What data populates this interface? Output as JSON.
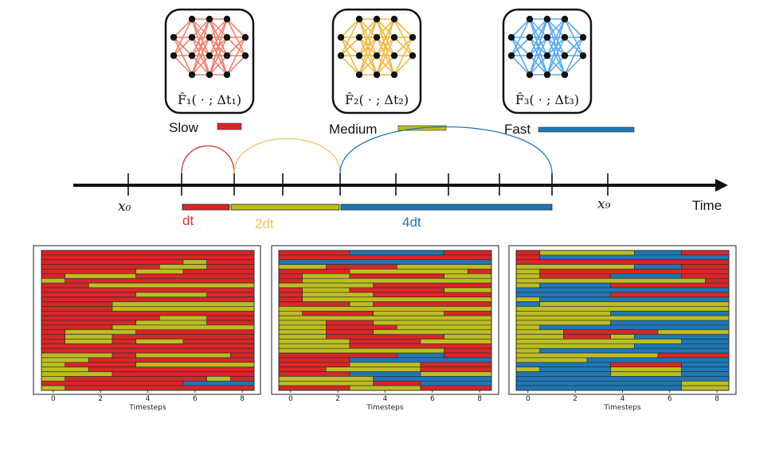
{
  "networks": [
    {
      "label": "F̂₁( · ; Δt₁)",
      "color": "#f08070"
    },
    {
      "label": "F̂₂( · ; Δt₂)",
      "color": "#f0b840"
    },
    {
      "label": "F̂₃( · ; Δt₃)",
      "color": "#58a8f0"
    }
  ],
  "legend": [
    {
      "label": "Slow",
      "color": "#d62728"
    },
    {
      "label": "Medium",
      "color": "#bcbd22"
    },
    {
      "label": "Fast",
      "color": "#1f77b4"
    }
  ],
  "timeline": {
    "axis_label": "Time",
    "x0_label": "x₀",
    "x9_label": "x₉",
    "steps": [
      {
        "label": "dt",
        "color": "#e03030"
      },
      {
        "label": "2dt",
        "color": "#f0c060"
      },
      {
        "label": "4dt",
        "color": "#1f77b4"
      }
    ]
  },
  "chart_data": [
    {
      "type": "heatmap",
      "xlabel": "Timesteps",
      "xticks": [
        0,
        2,
        4,
        6,
        8
      ],
      "xlim": [
        0,
        9
      ],
      "rows": [
        "SSSSSSSSS",
        "SSSSSSSSS",
        "SSSSSSMSS",
        "SSSSSMMSS",
        "SSSSMMSSS",
        "SMMMSSSSS",
        "MSSSSSSSS",
        "SSMMMMMMM",
        "SSSSSSSSS",
        "SSSSMMMSS",
        "SSSSSSSSS",
        "SSSMMMMMM",
        "SSSMMMMMM",
        "SSSSSSSSS",
        "SSSSSMMSS",
        "SSSSMMMSS",
        "SSSMMMMMM",
        "SMMMSSSSS",
        "SMMSSSSSS",
        "SMMSMMSSS",
        "SSSSSSSSS",
        "SSSSSSSSS",
        "MMMSMMMMS",
        "MMSSSSSSS",
        "MSSSMMMMM",
        "MMSSSSSSS",
        "MMMSSSSSS",
        "MSSSSSSMS",
        "SSSSSSFFF",
        "MSSSSSSSS"
      ]
    },
    {
      "type": "heatmap",
      "xlabel": "Timesteps",
      "xticks": [
        0,
        2,
        4,
        6,
        8
      ],
      "xlim": [
        0,
        9
      ],
      "rows": [
        "SSSFFFFSS",
        "SSSSSSSSS",
        "FFFFFFFFF",
        "MMSSSMMMM",
        "SSSMMMMMS",
        "SMMSSSSMM",
        "SMMMMMMMM",
        "MMMMSSSSS",
        "SMMSSSSMM",
        "SMMMSSSSS",
        "SMMMMMMMM",
        "SSSMSSSSS",
        "MMMMMMMMM",
        "MSSSMMMSS",
        "MMMMMMMMM",
        "MMSSMMMMM",
        "MMSSSMMMM",
        "MMSSMMMMM",
        "MMSSSSSMM",
        "MMMSSSMMM",
        "MMMSSSSSS",
        "MMMMMMMSS",
        "SSSSSFFSS",
        "SSSFFFFFF",
        "SSSMMMSSS",
        "SSMMMMSSS",
        "SSSFFFMMM",
        "MMMMFFFFF",
        "MMMMSSFFF",
        "SSSMMMSSS"
      ]
    },
    {
      "type": "heatmap",
      "xlabel": "Timesteps",
      "xticks": [
        0,
        2,
        4,
        6,
        8
      ],
      "xlim": [
        0,
        9
      ],
      "rows": [
        "SMMMMFFSS",
        "SFFFFFFFF",
        "SSSSSSSSS",
        "MMMMMFFSS",
        "MSSSSSSSS",
        "MSSSFFFSS",
        "MMMMMMMMS",
        "MFFFSSSSS",
        "FFFFFFFFF",
        "FFFFSSSSS",
        "MFFFFFFFF",
        "FMMMMMMMM",
        "MMMMMMMMM",
        "MMMMFFFFF",
        "MMMMMMMMM",
        "MMMMFFFFF",
        "MFFFFFFFF",
        "MMSSSSMMM",
        "MMSSMFFFF",
        "MMMMMMMFF",
        "MMMMMFFFF",
        "MFFFFFFFF",
        "MMMMMMSSS",
        "MMMFFFFFF",
        "FFFFSSSFF",
        "MFFFMMMFF",
        "FFFFMMMFF",
        "FFFFFFFFF",
        "FFFFFFFMM",
        "FFFFFFFMM"
      ]
    }
  ]
}
